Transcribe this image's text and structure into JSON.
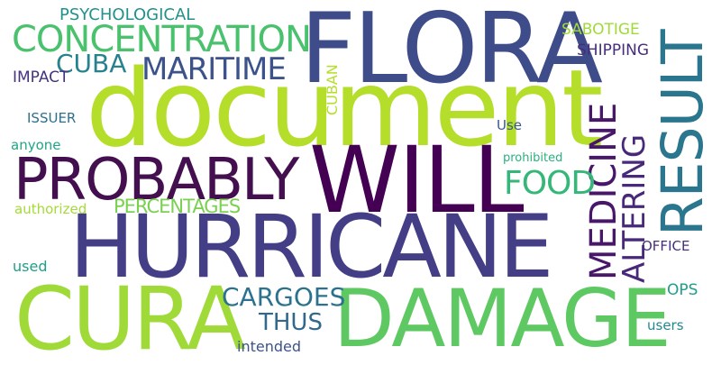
{
  "cloud": {
    "words": [
      {
        "text": "document",
        "color": "#b5de2b"
      },
      {
        "text": "FLORA",
        "color": "#3e4c8a"
      },
      {
        "text": "HURRICANE",
        "color": "#433e85"
      },
      {
        "text": "WILL",
        "color": "#440154"
      },
      {
        "text": "DAMAGE",
        "color": "#5ec962"
      },
      {
        "text": "CURA",
        "color": "#a0da39"
      },
      {
        "text": "PROBABLY",
        "color": "#440f4f"
      },
      {
        "text": "RESULT",
        "color": "#2a768e"
      },
      {
        "text": "CONCENTRATION",
        "color": "#4ac16d"
      },
      {
        "text": "MARITIME",
        "color": "#3b528b"
      },
      {
        "text": "MEDICINE",
        "color": "#481769"
      },
      {
        "text": "ALTERING",
        "color": "#482878"
      },
      {
        "text": "FOOD",
        "color": "#35b779"
      },
      {
        "text": "CUBA",
        "color": "#26828e"
      },
      {
        "text": "CARGOES",
        "color": "#2c728e"
      },
      {
        "text": "PERCENTAGES",
        "color": "#7ad151"
      },
      {
        "text": "THUS",
        "color": "#31688e"
      },
      {
        "text": "PSYCHOLOGICAL",
        "color": "#21918c"
      },
      {
        "text": "SABOTIGE",
        "color": "#a0da39"
      },
      {
        "text": "SHIPPING",
        "color": "#472d7b"
      },
      {
        "text": "IMPACT",
        "color": "#46337e"
      },
      {
        "text": "CUBAN",
        "color": "#b5de2b"
      },
      {
        "text": "ISSUER",
        "color": "#2d708e"
      },
      {
        "text": "Use",
        "color": "#38598c"
      },
      {
        "text": "anyone",
        "color": "#21a685"
      },
      {
        "text": "prohibited",
        "color": "#2ab07f"
      },
      {
        "text": "authorized",
        "color": "#a5db36"
      },
      {
        "text": "OFFICE",
        "color": "#472f7d"
      },
      {
        "text": "used",
        "color": "#1fa088"
      },
      {
        "text": "OPS",
        "color": "#1f9e89"
      },
      {
        "text": "intended",
        "color": "#3b528b"
      },
      {
        "text": "users",
        "color": "#23898e"
      }
    ]
  }
}
